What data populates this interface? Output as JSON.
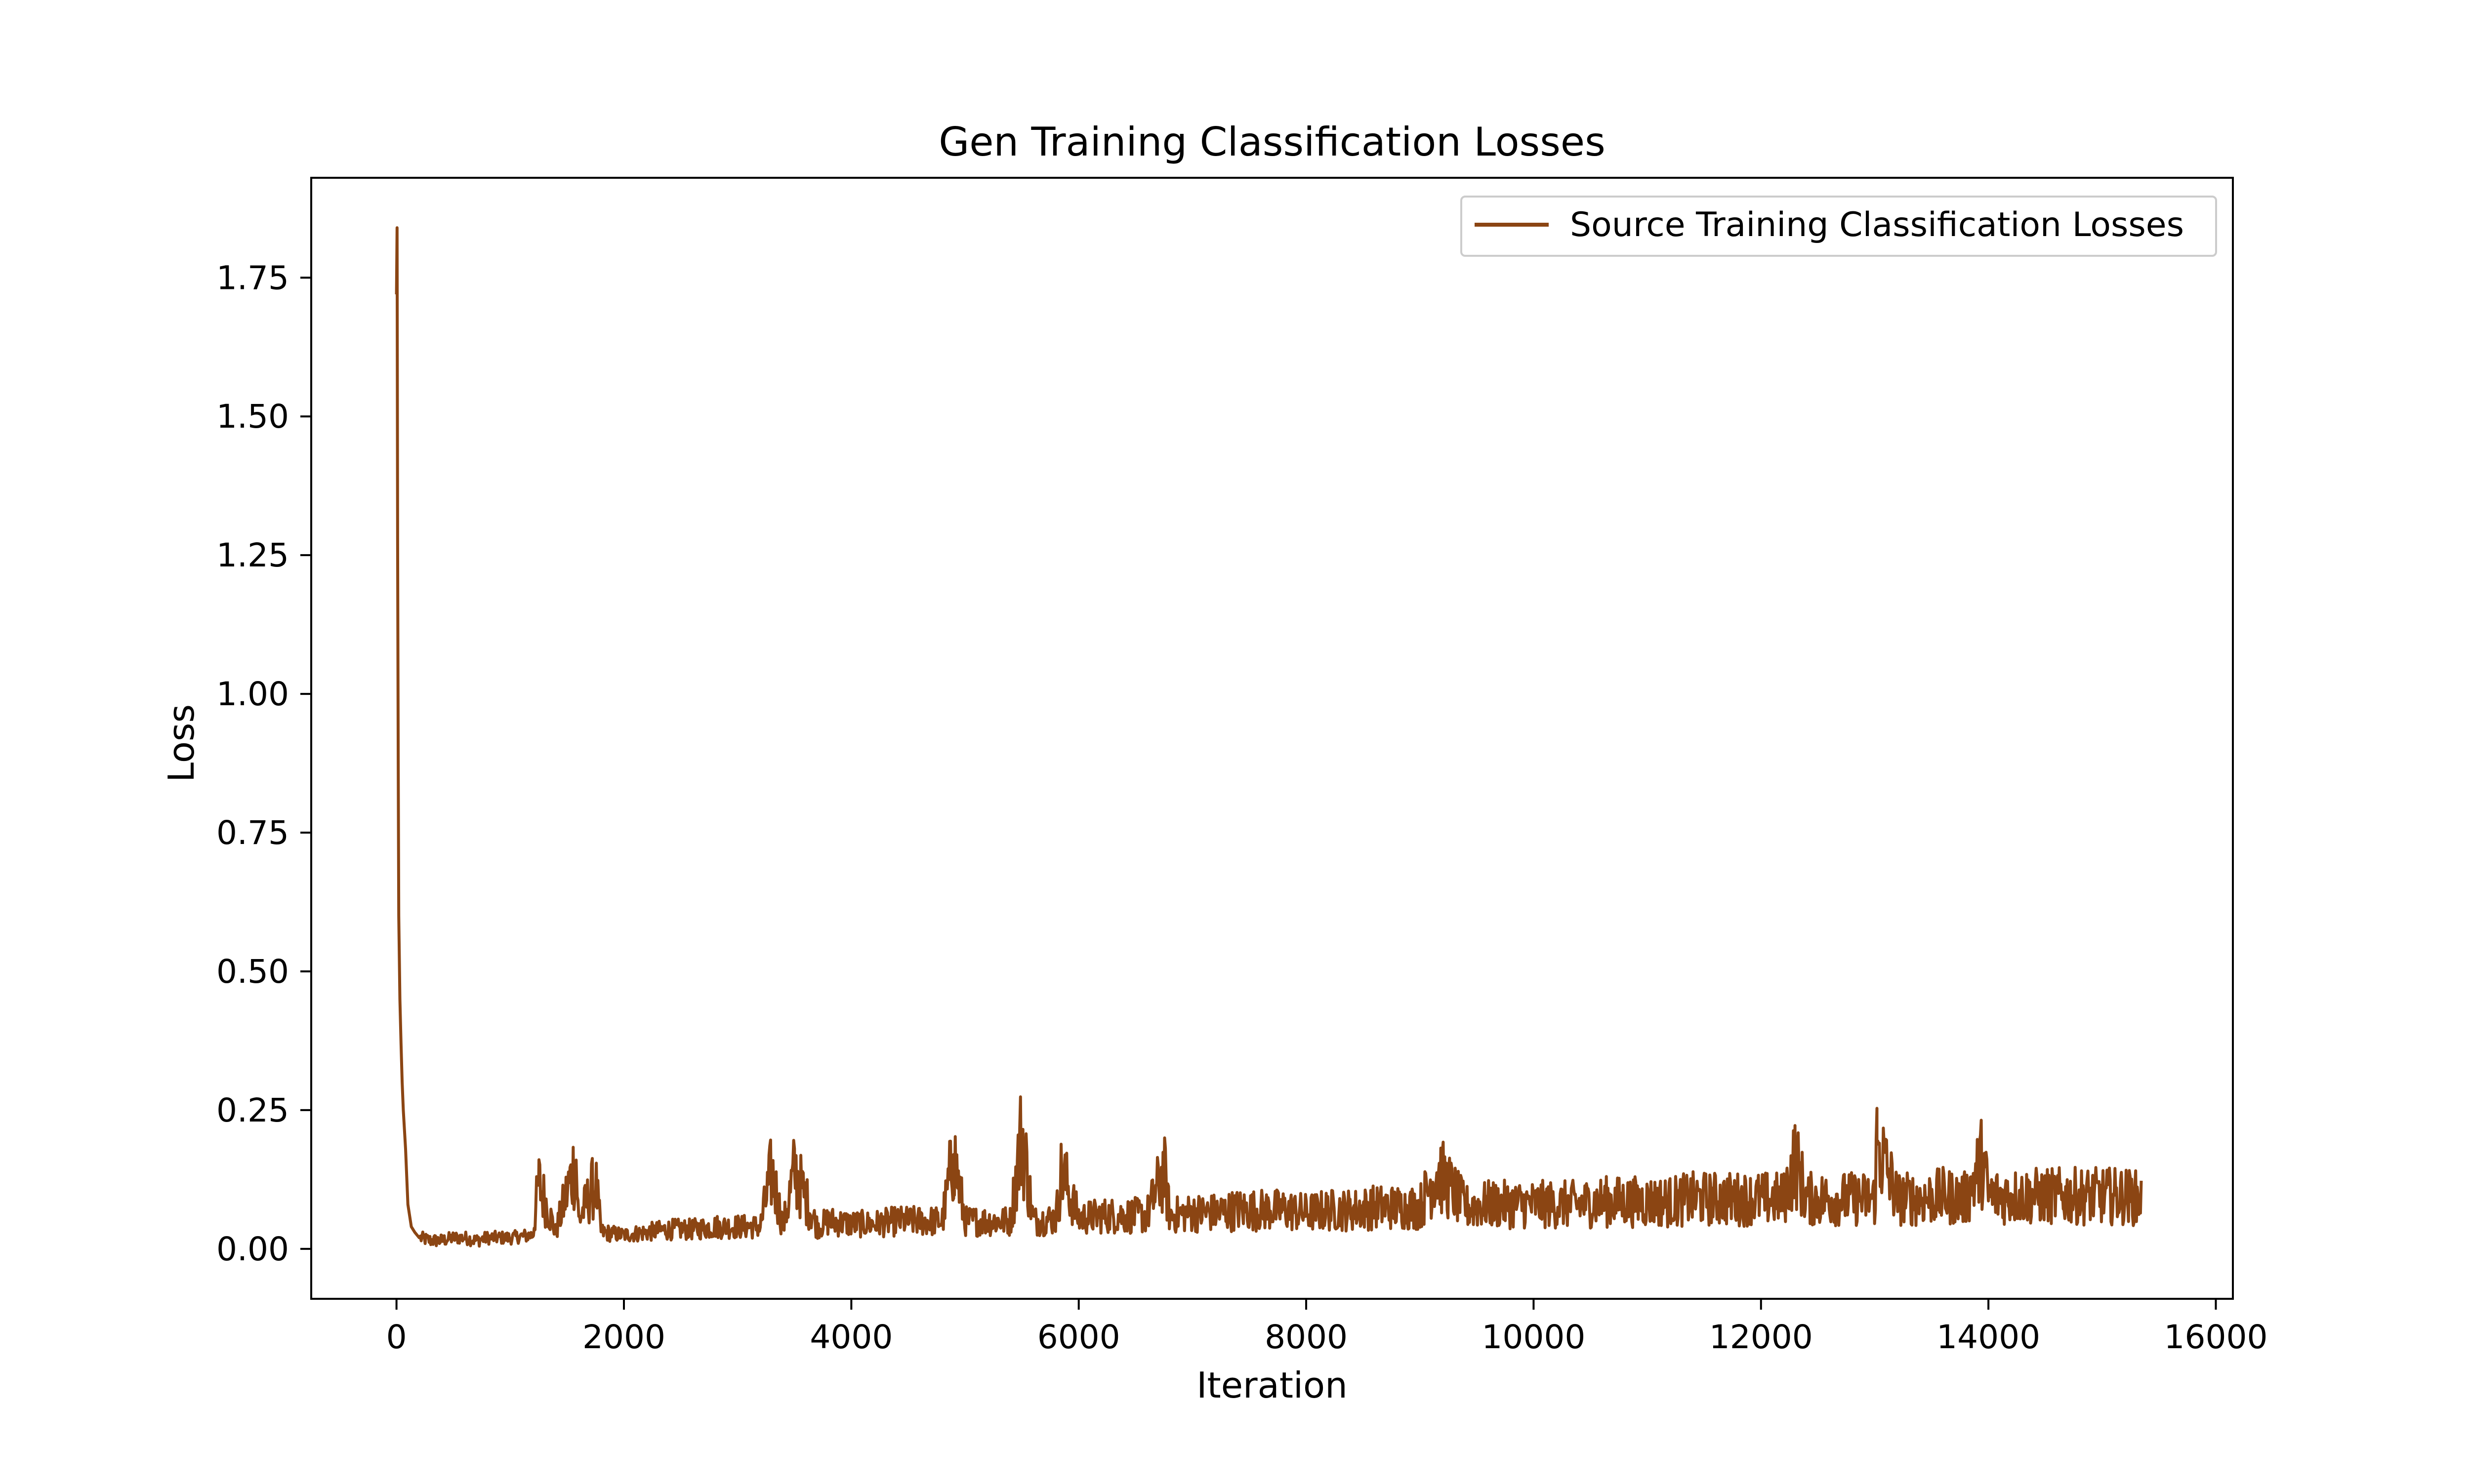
{
  "chart_data": {
    "type": "line",
    "title": "Gen Training Classification Losses",
    "xlabel": "Iteration",
    "ylabel": "Loss",
    "xlim": [
      -750,
      16150
    ],
    "ylim": [
      -0.09,
      1.93
    ],
    "xticks": [
      0,
      2000,
      4000,
      6000,
      8000,
      10000,
      12000,
      14000,
      16000
    ],
    "xtick_labels": [
      "0",
      "2000",
      "4000",
      "6000",
      "8000",
      "10000",
      "12000",
      "14000",
      "16000"
    ],
    "yticks": [
      0.0,
      0.25,
      0.5,
      0.75,
      1.0,
      1.25,
      1.5,
      1.75
    ],
    "ytick_labels": [
      "0.00",
      "0.25",
      "0.50",
      "0.75",
      "1.00",
      "1.25",
      "1.50",
      "1.75"
    ],
    "grid": false,
    "legend_position": "top-right",
    "series": [
      {
        "name": "Source Training Classification Losses",
        "color": "#8B4513",
        "x": [
          0,
          5,
          10,
          15,
          20,
          30,
          40,
          50,
          60,
          80,
          100,
          130,
          160,
          200,
          300,
          400,
          500,
          600,
          700,
          800,
          1000,
          1200,
          1250,
          1400,
          1580,
          1600,
          1750,
          1800,
          2000,
          2200,
          2400,
          2600,
          2800,
          3000,
          3200,
          3300,
          3400,
          3500,
          3700,
          3800,
          4000,
          4200,
          4400,
          4600,
          4800,
          4900,
          5000,
          5200,
          5400,
          5500,
          5600,
          5800,
          5850,
          6000,
          6200,
          6400,
          6600,
          6750,
          6800,
          7000,
          7200,
          7400,
          7600,
          7800,
          8000,
          8200,
          8400,
          8600,
          8800,
          9000,
          9150,
          9400,
          9600,
          9800,
          10000,
          10200,
          10400,
          10600,
          10800,
          11000,
          11200,
          11400,
          11600,
          11800,
          12000,
          12200,
          12300,
          12400,
          12600,
          12800,
          13000,
          13020,
          13200,
          13400,
          13600,
          13800,
          13950,
          14000,
          14200,
          14400,
          14600,
          14800,
          15000,
          15200,
          15350
        ],
        "y": [
          1.72,
          1.84,
          1.27,
          0.88,
          0.6,
          0.45,
          0.37,
          0.3,
          0.25,
          0.18,
          0.08,
          0.04,
          0.03,
          0.02,
          0.015,
          0.015,
          0.02,
          0.02,
          0.015,
          0.02,
          0.02,
          0.025,
          0.12,
          0.03,
          0.16,
          0.05,
          0.12,
          0.03,
          0.025,
          0.03,
          0.035,
          0.035,
          0.04,
          0.04,
          0.04,
          0.14,
          0.04,
          0.14,
          0.04,
          0.05,
          0.045,
          0.045,
          0.05,
          0.05,
          0.05,
          0.17,
          0.05,
          0.05,
          0.05,
          0.21,
          0.05,
          0.055,
          0.14,
          0.055,
          0.06,
          0.06,
          0.06,
          0.14,
          0.06,
          0.065,
          0.065,
          0.07,
          0.07,
          0.07,
          0.065,
          0.07,
          0.07,
          0.075,
          0.075,
          0.075,
          0.14,
          0.075,
          0.08,
          0.08,
          0.08,
          0.08,
          0.08,
          0.085,
          0.085,
          0.085,
          0.085,
          0.09,
          0.09,
          0.09,
          0.09,
          0.09,
          0.16,
          0.09,
          0.09,
          0.09,
          0.09,
          0.19,
          0.09,
          0.09,
          0.095,
          0.09,
          0.16,
          0.095,
          0.095,
          0.095,
          0.095,
          0.095,
          0.095,
          0.095,
          0.09
        ]
      }
    ]
  }
}
